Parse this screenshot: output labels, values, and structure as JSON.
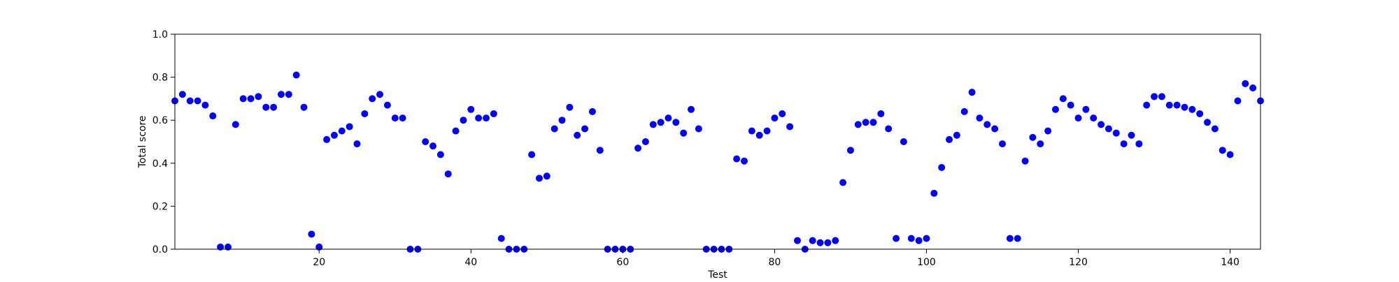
{
  "chart_data": {
    "type": "scatter",
    "title": "",
    "xlabel": "Test",
    "ylabel": "Total score",
    "xlim": [
      1,
      144
    ],
    "ylim": [
      0.0,
      1.0
    ],
    "x_ticks": [
      20,
      40,
      60,
      80,
      100,
      120,
      140
    ],
    "y_ticks": [
      0.0,
      0.2,
      0.4,
      0.6,
      0.8,
      1.0
    ],
    "y_tick_labels": [
      "0.0",
      "0.2",
      "0.4",
      "0.6",
      "0.8",
      "1.0"
    ],
    "grid": false,
    "marker_color": "#0000ff",
    "series": [
      {
        "x": [
          1,
          2,
          3,
          4,
          5,
          6,
          7,
          8,
          9,
          10,
          11,
          12,
          13,
          14,
          15,
          16,
          17,
          18,
          19,
          20,
          21,
          22,
          23,
          24,
          25,
          26,
          27,
          28,
          29,
          30,
          31,
          32,
          33,
          34,
          35,
          36,
          37,
          38,
          39,
          40,
          41,
          42,
          43,
          44,
          45,
          46,
          47,
          48,
          49,
          50,
          51,
          52,
          53,
          54,
          55,
          56,
          57,
          58,
          59,
          60,
          61,
          62,
          63,
          64,
          65,
          66,
          67,
          68,
          69,
          70,
          71,
          72,
          73,
          74,
          75,
          76,
          77,
          78,
          79,
          80,
          81,
          82,
          83,
          84,
          85,
          86,
          87,
          88,
          89,
          90,
          91,
          92,
          93,
          94,
          95,
          96,
          97,
          98,
          99,
          100,
          101,
          102,
          103,
          104,
          105,
          106,
          107,
          108,
          109,
          110,
          111,
          112,
          113,
          114,
          115,
          116,
          117,
          118,
          119,
          120,
          121,
          122,
          123,
          124,
          125,
          126,
          127,
          128,
          129,
          130,
          131,
          132,
          133,
          134,
          135,
          136,
          137,
          138,
          139,
          140,
          141,
          142,
          143,
          144
        ],
        "y": [
          0.69,
          0.72,
          0.69,
          0.69,
          0.67,
          0.62,
          0.01,
          0.01,
          0.58,
          0.7,
          0.7,
          0.71,
          0.66,
          0.66,
          0.72,
          0.72,
          0.81,
          0.66,
          0.07,
          0.01,
          0.51,
          0.53,
          0.55,
          0.57,
          0.49,
          0.63,
          0.7,
          0.72,
          0.67,
          0.61,
          0.61,
          0.0,
          0.0,
          0.5,
          0.48,
          0.44,
          0.35,
          0.55,
          0.6,
          0.65,
          0.61,
          0.61,
          0.63,
          0.05,
          0.0,
          0.0,
          0.0,
          0.44,
          0.33,
          0.34,
          0.56,
          0.6,
          0.66,
          0.53,
          0.56,
          0.64,
          0.46,
          0.0,
          0.0,
          0.0,
          0.0,
          0.47,
          0.5,
          0.58,
          0.59,
          0.61,
          0.59,
          0.54,
          0.65,
          0.56,
          0.0,
          0.0,
          0.0,
          0.0,
          0.42,
          0.41,
          0.55,
          0.53,
          0.55,
          0.61,
          0.63,
          0.57,
          0.04,
          0.0,
          0.04,
          0.03,
          0.03,
          0.04,
          0.31,
          0.46,
          0.58,
          0.59,
          0.59,
          0.63,
          0.56,
          0.05,
          0.5,
          0.05,
          0.04,
          0.05,
          0.26,
          0.38,
          0.51,
          0.53,
          0.64,
          0.73,
          0.61,
          0.58,
          0.56,
          0.49,
          0.05,
          0.05,
          0.41,
          0.52,
          0.49,
          0.55,
          0.65,
          0.7,
          0.67,
          0.61,
          0.65,
          0.61,
          0.58,
          0.56,
          0.54,
          0.49,
          0.53,
          0.49,
          0.67,
          0.71,
          0.71,
          0.67,
          0.67,
          0.66,
          0.65,
          0.63,
          0.59,
          0.56,
          0.46,
          0.44,
          0.69,
          0.77,
          0.75,
          0.69
        ]
      }
    ]
  }
}
